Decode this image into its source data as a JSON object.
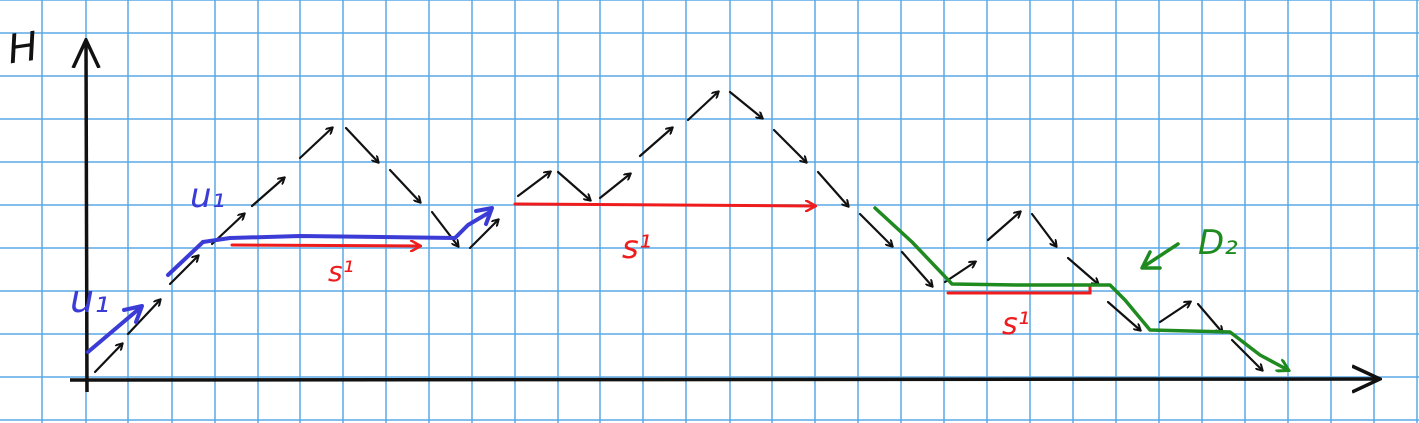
{
  "colors": {
    "grid": "#5aa9e6",
    "background": "#ffffff",
    "steps": "#111111",
    "blue_path": "#3b3bd6",
    "red_path": "#ee1c1c",
    "green_path": "#1f8a1f"
  },
  "labels": {
    "y_axis": "H",
    "blue_label_1": "u₁",
    "blue_label_2": "u₁",
    "red_label_1": "s¹",
    "red_label_2": "s¹",
    "red_label_3": "s¹",
    "green_label": "D₂"
  }
}
